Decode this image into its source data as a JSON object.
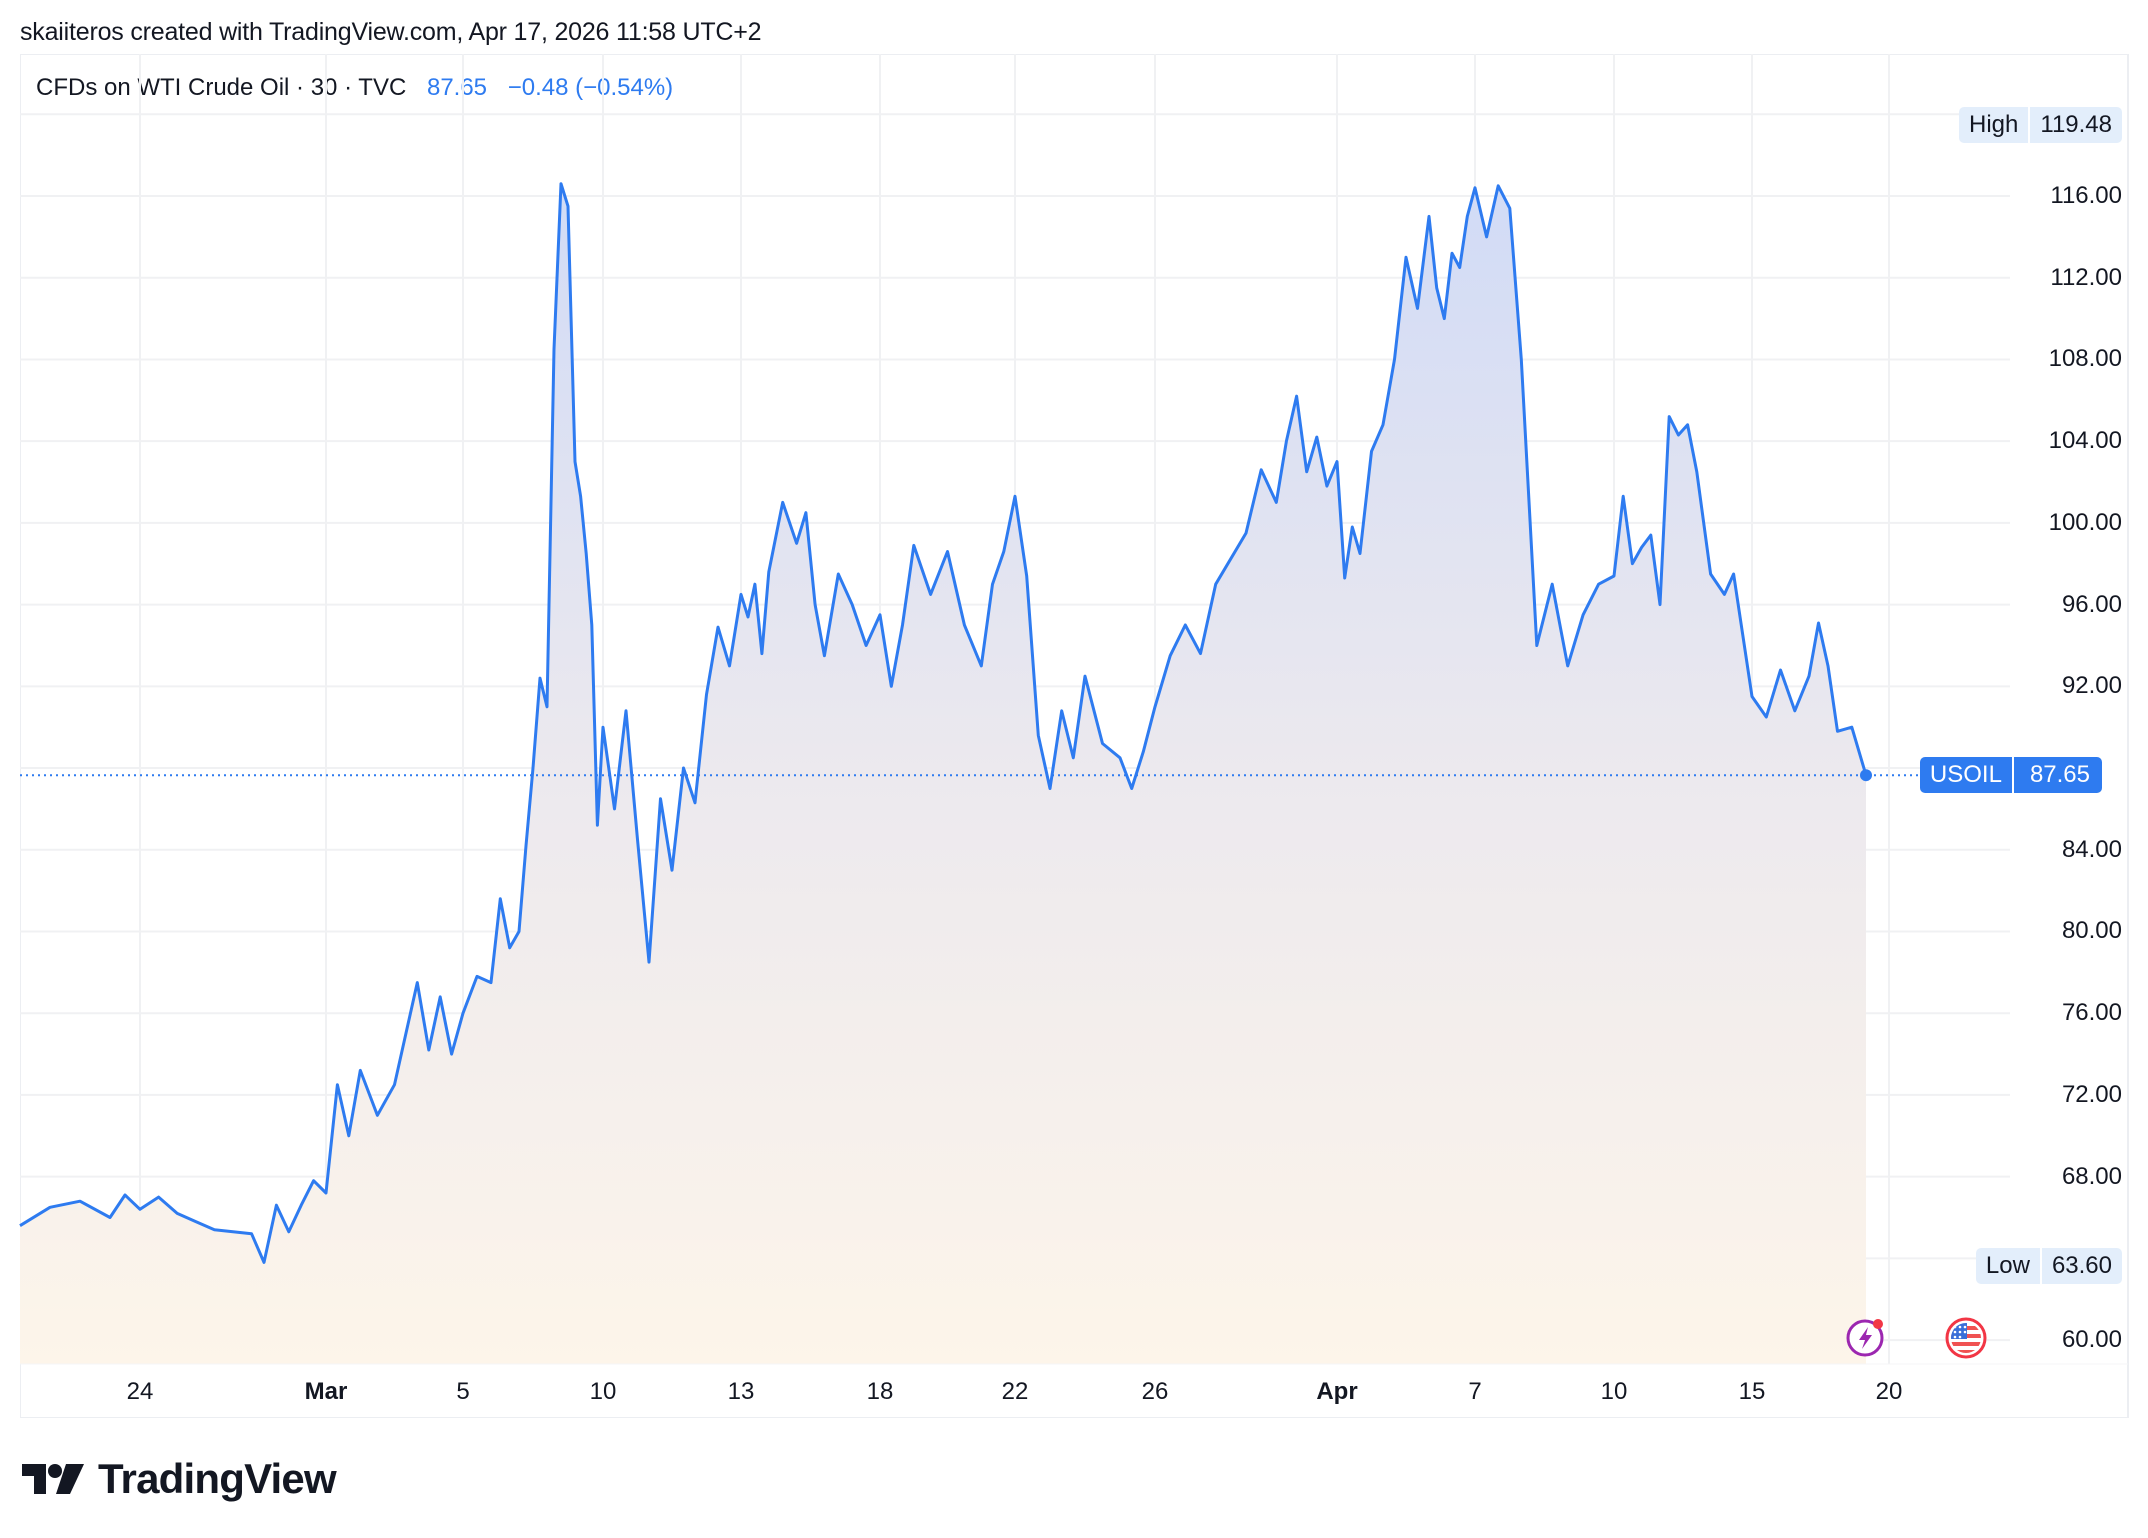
{
  "attribution": "skaiiteros created with TradingView.com, Apr 17, 2026 11:58 UTC+2",
  "legend": {
    "symbol": "CFDs on WTI Crude Oil · 30 · TVC",
    "last": "87.65",
    "change": "−0.48 (−0.54%)"
  },
  "high_badge": {
    "label": "High",
    "value": "119.48"
  },
  "low_badge": {
    "label": "Low",
    "value": "63.60"
  },
  "current_badge": {
    "label": "USOIL",
    "value": "87.65"
  },
  "price_axis": [
    "116.00",
    "112.00",
    "108.00",
    "104.00",
    "100.00",
    "96.00",
    "92.00",
    "84.00",
    "80.00",
    "76.00",
    "72.00",
    "68.00",
    "60.00"
  ],
  "time_axis": [
    {
      "label": "24",
      "bold": false
    },
    {
      "label": "Mar",
      "bold": true
    },
    {
      "label": "5",
      "bold": false
    },
    {
      "label": "10",
      "bold": false
    },
    {
      "label": "13",
      "bold": false
    },
    {
      "label": "18",
      "bold": false
    },
    {
      "label": "22",
      "bold": false
    },
    {
      "label": "26",
      "bold": false
    },
    {
      "label": "Apr",
      "bold": true
    },
    {
      "label": "7",
      "bold": false
    },
    {
      "label": "10",
      "bold": false
    },
    {
      "label": "15",
      "bold": false
    },
    {
      "label": "20",
      "bold": false
    }
  ],
  "icons": [
    "lightning-events-icon",
    "us-flag-icon"
  ],
  "logo": {
    "text": "TradingView"
  },
  "colors": {
    "line": "#2e7bf0",
    "accent": "#2e7bf0",
    "grid": "#f0f1f3",
    "fill_top": "#d3dcf5",
    "fill_bottom": "#fdf5ea",
    "badge_bg": "#e3eefb"
  },
  "chart_data": {
    "type": "area",
    "title": "CFDs on WTI Crude Oil · 30 · TVC",
    "symbol": "USOIL",
    "timeframe": "30",
    "last": 87.65,
    "change": -0.48,
    "change_pct": -0.54,
    "high": 119.48,
    "low": 63.6,
    "xlabel": "",
    "ylabel": "",
    "ylim": [
      59,
      120
    ],
    "y_ticks": [
      60,
      68,
      72,
      76,
      80,
      84,
      92,
      96,
      100,
      104,
      108,
      112,
      116
    ],
    "x_tick_labels": [
      "24",
      "Mar",
      "5",
      "10",
      "13",
      "18",
      "22",
      "26",
      "Apr",
      "7",
      "10",
      "15",
      "20"
    ],
    "grid": true,
    "legend_position": "top-left",
    "points_x_label": "approx date position",
    "series": [
      {
        "name": "USOIL",
        "points": [
          [
            "Feb 20",
            65.6
          ],
          [
            "Feb 21",
            66.5
          ],
          [
            "Feb 22",
            66.8
          ],
          [
            "Feb 23",
            66.0
          ],
          [
            "Feb 23",
            67.1
          ],
          [
            "Feb 24",
            66.4
          ],
          [
            "Feb 24",
            67.0
          ],
          [
            "Feb 25",
            66.2
          ],
          [
            "Feb 25",
            65.8
          ],
          [
            "Feb 26",
            65.4
          ],
          [
            "Feb 27",
            65.2
          ],
          [
            "Feb 27",
            63.8
          ],
          [
            "Feb 27",
            66.6
          ],
          [
            "Feb 28",
            65.3
          ],
          [
            "Feb 28",
            66.6
          ],
          [
            "Feb 28",
            67.8
          ],
          [
            "Mar 1",
            67.2
          ],
          [
            "Mar 1",
            72.5
          ],
          [
            "Mar 1",
            70.0
          ],
          [
            "Mar 2",
            73.2
          ],
          [
            "Mar 2",
            71.0
          ],
          [
            "Mar 3",
            72.5
          ],
          [
            "Mar 3",
            75.0
          ],
          [
            "Mar 3",
            77.5
          ],
          [
            "Mar 4",
            74.2
          ],
          [
            "Mar 4",
            76.8
          ],
          [
            "Mar 4",
            74.0
          ],
          [
            "Mar 5",
            76.0
          ],
          [
            "Mar 5",
            77.8
          ],
          [
            "Mar 6",
            77.5
          ],
          [
            "Mar 6",
            81.6
          ],
          [
            "Mar 6",
            79.2
          ],
          [
            "Mar 7",
            80.0
          ],
          [
            "Mar 7",
            84.2
          ],
          [
            "Mar 7",
            88.0
          ],
          [
            "Mar 7",
            92.4
          ],
          [
            "Mar 8",
            91.0
          ],
          [
            "Mar 8",
            108.5
          ],
          [
            "Mar 8",
            116.6
          ],
          [
            "Mar 8",
            115.5
          ],
          [
            "Mar 9",
            103.0
          ],
          [
            "Mar 9",
            101.3
          ],
          [
            "Mar 9",
            98.5
          ],
          [
            "Mar 9",
            95.0
          ],
          [
            "Mar 9",
            85.2
          ],
          [
            "Mar 10",
            90.0
          ],
          [
            "Mar 10",
            86.0
          ],
          [
            "Mar 10",
            90.8
          ],
          [
            "Mar 10",
            84.5
          ],
          [
            "Mar 11",
            78.5
          ],
          [
            "Mar 11",
            86.5
          ],
          [
            "Mar 11",
            83.0
          ],
          [
            "Mar 11",
            88.0
          ],
          [
            "Mar 12",
            86.3
          ],
          [
            "Mar 12",
            91.6
          ],
          [
            "Mar 12",
            94.9
          ],
          [
            "Mar 12",
            93.0
          ],
          [
            "Mar 13",
            96.5
          ],
          [
            "Mar 13",
            95.4
          ],
          [
            "Mar 13",
            97.0
          ],
          [
            "Mar 13",
            93.6
          ],
          [
            "Mar 14",
            97.6
          ],
          [
            "Mar 14",
            101.0
          ],
          [
            "Mar 15",
            99.0
          ],
          [
            "Mar 15",
            100.5
          ],
          [
            "Mar 15",
            96.0
          ],
          [
            "Mar 16",
            93.5
          ],
          [
            "Mar 16",
            97.5
          ],
          [
            "Mar 17",
            96.0
          ],
          [
            "Mar 17",
            94.0
          ],
          [
            "Mar 18",
            95.5
          ],
          [
            "Mar 18",
            92.0
          ],
          [
            "Mar 18",
            95.0
          ],
          [
            "Mar 19",
            98.9
          ],
          [
            "Mar 19",
            96.5
          ],
          [
            "Mar 20",
            98.6
          ],
          [
            "Mar 20",
            95.0
          ],
          [
            "Mar 21",
            93.0
          ],
          [
            "Mar 21",
            97.0
          ],
          [
            "Mar 21",
            98.6
          ],
          [
            "Mar 22",
            101.3
          ],
          [
            "Mar 22",
            97.4
          ],
          [
            "Mar 22",
            89.6
          ],
          [
            "Mar 23",
            87.0
          ],
          [
            "Mar 23",
            90.8
          ],
          [
            "Mar 23",
            88.5
          ],
          [
            "Mar 24",
            92.5
          ],
          [
            "Mar 24",
            89.2
          ],
          [
            "Mar 25",
            88.5
          ],
          [
            "Mar 25",
            87.0
          ],
          [
            "Mar 25",
            88.8
          ],
          [
            "Mar 26",
            91.0
          ],
          [
            "Mar 26",
            93.5
          ],
          [
            "Mar 27",
            95.0
          ],
          [
            "Mar 27",
            93.6
          ],
          [
            "Mar 28",
            97.0
          ],
          [
            "Mar 29",
            99.5
          ],
          [
            "Mar 29",
            102.6
          ],
          [
            "Mar 30",
            101.0
          ],
          [
            "Mar 30",
            104.0
          ],
          [
            "Mar 30",
            106.2
          ],
          [
            "Mar 31",
            102.5
          ],
          [
            "Mar 31",
            104.2
          ],
          [
            "Mar 31",
            101.8
          ],
          [
            "Apr 1",
            103.0
          ],
          [
            "Apr 1",
            97.3
          ],
          [
            "Apr 1",
            99.8
          ],
          [
            "Apr 2",
            98.5
          ],
          [
            "Apr 2",
            103.5
          ],
          [
            "Apr 3",
            104.8
          ],
          [
            "Apr 3",
            108.0
          ],
          [
            "Apr 4",
            113.0
          ],
          [
            "Apr 4",
            110.5
          ],
          [
            "Apr 5",
            115.0
          ],
          [
            "Apr 5",
            111.5
          ],
          [
            "Apr 5",
            110.0
          ],
          [
            "Apr 6",
            113.2
          ],
          [
            "Apr 6",
            112.5
          ],
          [
            "Apr 6",
            115.0
          ],
          [
            "Apr 7",
            116.4
          ],
          [
            "Apr 7",
            114.0
          ],
          [
            "Apr 7",
            116.5
          ],
          [
            "Apr 7",
            115.4
          ],
          [
            "Apr 8",
            108.0
          ],
          [
            "Apr 8",
            94.0
          ],
          [
            "Apr 8",
            97.0
          ],
          [
            "Apr 9",
            93.0
          ],
          [
            "Apr 9",
            95.5
          ],
          [
            "Apr 9",
            97.0
          ],
          [
            "Apr 10",
            97.4
          ],
          [
            "Apr 10",
            101.3
          ],
          [
            "Apr 10",
            98.0
          ],
          [
            "Apr 11",
            98.8
          ],
          [
            "Apr 11",
            99.4
          ],
          [
            "Apr 11",
            96.0
          ],
          [
            "Apr 12",
            105.2
          ],
          [
            "Apr 12",
            104.3
          ],
          [
            "Apr 12",
            104.8
          ],
          [
            "Apr 13",
            102.5
          ],
          [
            "Apr 13",
            97.5
          ],
          [
            "Apr 14",
            96.5
          ],
          [
            "Apr 14",
            97.5
          ],
          [
            "Apr 14",
            94.5
          ],
          [
            "Apr 15",
            91.5
          ],
          [
            "Apr 15",
            90.5
          ],
          [
            "Apr 16",
            92.8
          ],
          [
            "Apr 16",
            90.8
          ],
          [
            "Apr 17",
            92.5
          ],
          [
            "Apr 17",
            95.1
          ],
          [
            "Apr 17",
            93.0
          ],
          [
            "Apr 18",
            89.8
          ],
          [
            "Apr 18",
            90.0
          ],
          [
            "Apr 19",
            87.65
          ]
        ]
      }
    ]
  }
}
